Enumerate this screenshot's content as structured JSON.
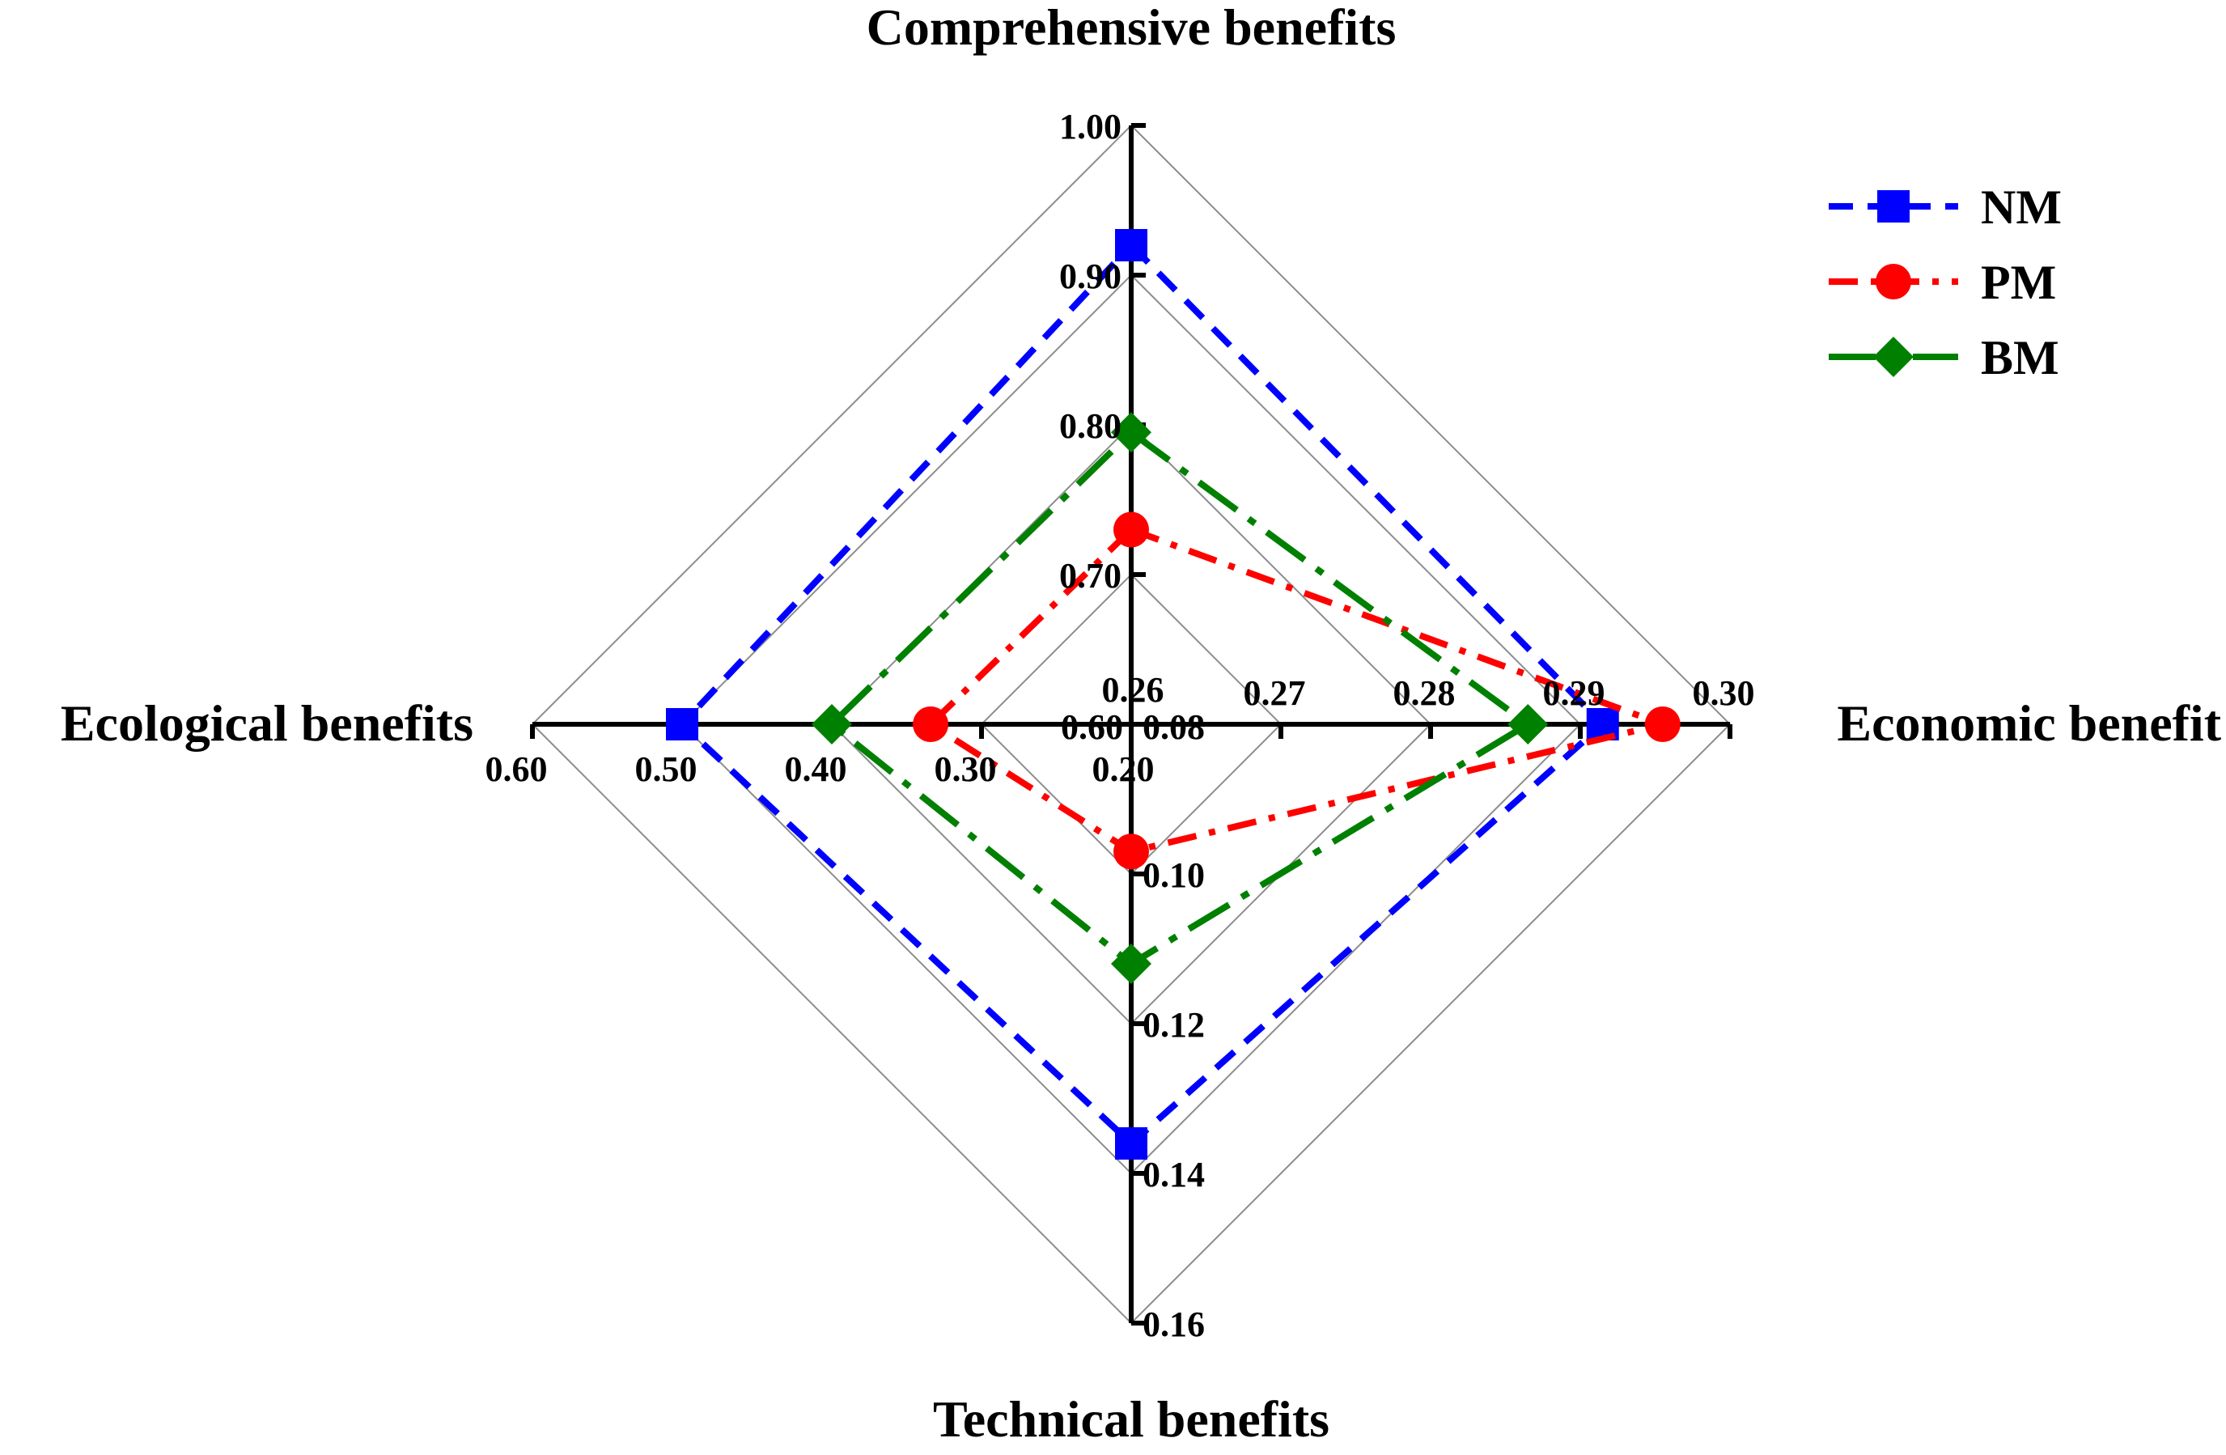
{
  "chart_data": {
    "type": "radar",
    "axes": [
      {
        "key": "comprehensive",
        "title": "Comprehensive benefits",
        "range": [
          0.6,
          1.0
        ],
        "ticks": [
          "0.60",
          "0.70",
          "0.80",
          "0.90",
          "1.00"
        ]
      },
      {
        "key": "economic",
        "title": "Economic benefit",
        "range": [
          0.26,
          0.3
        ],
        "ticks": [
          "0.26",
          "0.27",
          "0.28",
          "0.29",
          "0.30"
        ]
      },
      {
        "key": "technical",
        "title": "Technical benefits",
        "range": [
          0.08,
          0.16
        ],
        "ticks": [
          "0.08",
          "0.10",
          "0.12",
          "0.14",
          "0.16"
        ]
      },
      {
        "key": "ecological",
        "title": "Ecological benefits",
        "range": [
          0.2,
          0.6
        ],
        "ticks": [
          "0.20",
          "0.30",
          "0.40",
          "0.50",
          "0.60"
        ]
      }
    ],
    "grid_levels": 4,
    "series": [
      {
        "name": "NM",
        "color": "#0000ff",
        "marker": "square",
        "line_style": "dashed",
        "values": [
          0.92,
          0.2915,
          0.136,
          0.5
        ]
      },
      {
        "name": "PM",
        "color": "#ff0000",
        "marker": "circle",
        "line_style": "dash-dot",
        "values": [
          0.73,
          0.2955,
          0.097,
          0.334
        ]
      },
      {
        "name": "BM",
        "color": "#008000",
        "marker": "diamond",
        "line_style": "long-dash-dot",
        "values": [
          0.795,
          0.2865,
          0.112,
          0.4
        ]
      }
    ],
    "legend": {
      "placement": "top-right"
    }
  }
}
